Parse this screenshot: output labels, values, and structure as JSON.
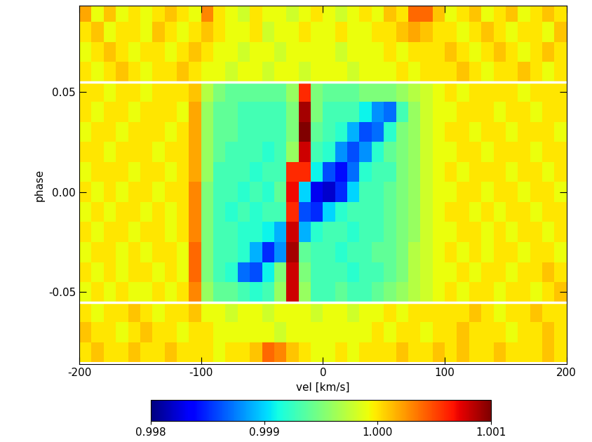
{
  "chart_data": {
    "type": "heatmap",
    "color": "jet",
    "xlabel": "vel [km/s]",
    "ylabel": "phase",
    "xlim": [
      -200,
      200
    ],
    "xticks": [
      -200,
      -100,
      0,
      100,
      200
    ],
    "ylim": [
      -0.086,
      0.093
    ],
    "yticks": [
      -0.05,
      {
        "value": 0.0,
        "label": "0.00"
      },
      0.05
    ],
    "hlines": [
      -0.055,
      0.055
    ],
    "x": [
      -195,
      -185,
      -175,
      -165,
      -155,
      -145,
      -135,
      -125,
      -115,
      -105,
      -95,
      -85,
      -75,
      -65,
      -55,
      -45,
      -35,
      -25,
      -15,
      -5,
      5,
      15,
      25,
      35,
      45,
      55,
      65,
      75,
      85,
      95,
      105,
      115,
      125,
      135,
      145,
      155,
      165,
      175,
      185,
      195
    ],
    "y": [
      -0.08,
      -0.07,
      -0.06,
      -0.05,
      -0.04,
      -0.03,
      -0.02,
      -0.01,
      0.0,
      0.01,
      0.02,
      0.03,
      0.04,
      0.05,
      0.06,
      0.07,
      0.08,
      0.09
    ],
    "cells": [
      [
        1.0,
        1.0001,
        1.0,
        1.0,
        1.0001,
        1.0,
        1.0,
        1.0001,
        1.0,
        1.0,
        1.0,
        0.9999,
        1.0,
        1.0,
        1.0001,
        1.0004,
        1.0003,
        1.0001,
        1.0,
        0.9999,
        0.9999,
        1.0,
        0.9999,
        1.0,
        1.0,
        1.0,
        1.0001,
        1.0,
        1.0,
        1.0001,
        1.0,
        1.0001,
        1.0,
        1.0,
        1.0001,
        1.0,
        1.0,
        1.0,
        1.0001,
        1.0
      ],
      [
        1.0001,
        1.0,
        1.0,
        0.9999,
        1.0,
        1.0001,
        1.0,
        1.0,
        0.9999,
        1.0,
        1.0,
        0.9999,
        0.9999,
        0.9999,
        0.9999,
        0.9999,
        0.9998,
        0.9999,
        0.9999,
        0.9999,
        0.9999,
        0.9999,
        0.9999,
        0.9999,
        1.0,
        0.9999,
        1.0,
        1.0,
        0.9999,
        1.0,
        1.0,
        1.0001,
        1.0,
        1.0,
        1.0,
        0.9999,
        1.0,
        1.0,
        1.0001,
        1.0
      ],
      [
        1.0,
        0.9999,
        1.0,
        1.0,
        1.0001,
        1.0,
        0.9999,
        1.0,
        1.0,
        1.0001,
        0.9999,
        0.9999,
        0.9998,
        0.9999,
        0.9999,
        0.9998,
        0.9999,
        0.9999,
        0.9999,
        0.9998,
        0.9999,
        0.9999,
        0.9998,
        0.9999,
        0.9999,
        1.0,
        0.9999,
        1.0,
        1.0,
        1.0,
        1.0,
        1.0,
        1.0001,
        1.0,
        0.9999,
        1.0,
        1.0,
        1.0001,
        1.0,
        1.0
      ],
      [
        0.9999,
        1.0,
        0.9999,
        1.0,
        0.9999,
        0.9999,
        1.0,
        0.9999,
        1.0,
        1.0003,
        0.9996,
        0.9994,
        0.9994,
        0.9993,
        0.9992,
        0.9993,
        0.9996,
        1.0008,
        0.9996,
        0.9993,
        0.9993,
        0.9994,
        0.9993,
        0.9993,
        0.9994,
        0.9995,
        0.9996,
        0.9997,
        0.9998,
        0.9999,
        1.0,
        0.9999,
        1.0,
        1.0,
        0.9999,
        1.0,
        1.0,
        0.9999,
        1.0,
        1.0001
      ],
      [
        1.0,
        0.9999,
        1.0,
        0.9999,
        1.0,
        1.0,
        0.9999,
        1.0,
        0.9999,
        1.0004,
        0.9995,
        0.9993,
        0.9992,
        0.9987,
        0.9986,
        0.9991,
        0.9995,
        1.0008,
        0.9995,
        0.9993,
        0.9993,
        0.9993,
        0.9992,
        0.9993,
        0.9993,
        0.9994,
        0.9995,
        0.9997,
        0.9998,
        0.9999,
        0.9999,
        1.0,
        0.9999,
        1.0,
        1.0,
        0.9999,
        1.0,
        1.0,
        1.0001,
        1.0
      ],
      [
        0.9999,
        1.0,
        1.0,
        0.9999,
        1.0,
        0.9999,
        1.0,
        1.0,
        0.9999,
        1.0004,
        0.9995,
        0.9993,
        0.9993,
        0.9992,
        0.9989,
        0.9985,
        0.9988,
        1.0009,
        0.9994,
        0.9993,
        0.9993,
        0.9992,
        0.9993,
        0.9993,
        0.9994,
        0.9994,
        0.9995,
        0.9997,
        0.9998,
        0.9999,
        1.0,
        0.9999,
        1.0,
        0.9999,
        1.0,
        1.0,
        0.9999,
        1.0,
        1.0,
        0.9999
      ],
      [
        1.0,
        0.9999,
        1.0,
        1.0,
        0.9999,
        1.0,
        1.0,
        0.9999,
        1.0,
        1.0003,
        0.9995,
        0.9993,
        0.9993,
        0.9992,
        0.9992,
        0.9991,
        0.9989,
        1.0008,
        0.9989,
        0.9992,
        0.9993,
        0.9993,
        0.9992,
        0.9993,
        0.9993,
        0.9994,
        0.9995,
        0.9996,
        0.9998,
        0.9999,
        0.9999,
        1.0,
        1.0,
        0.9999,
        1.0,
        0.9999,
        1.0,
        1.0,
        0.9999,
        1.0
      ],
      [
        0.9999,
        1.0,
        0.9999,
        1.0,
        1.0,
        0.9999,
        1.0,
        0.9999,
        1.0,
        1.0003,
        0.9995,
        0.9993,
        0.9992,
        0.9993,
        0.9992,
        0.9993,
        0.9993,
        1.0006,
        0.9986,
        0.9985,
        0.999,
        0.9992,
        0.9993,
        0.9993,
        0.9993,
        0.9994,
        0.9995,
        0.9996,
        0.9998,
        0.9999,
        1.0,
        1.0,
        0.9999,
        1.0,
        0.9999,
        1.0,
        1.0,
        0.9999,
        1.0,
        1.0
      ],
      [
        1.0,
        0.9999,
        1.0,
        0.9999,
        1.0,
        1.0,
        0.9999,
        1.0,
        1.0,
        1.0003,
        0.9995,
        0.9993,
        0.9993,
        0.9992,
        0.9993,
        0.9992,
        0.9994,
        1.0007,
        0.999,
        0.9983,
        0.9982,
        0.9985,
        0.999,
        0.9993,
        0.9993,
        0.9994,
        0.9995,
        0.9996,
        0.9998,
        0.9999,
        0.9999,
        1.0,
        1.0,
        0.9999,
        1.0,
        1.0,
        0.9999,
        1.0,
        1.0,
        0.9999
      ],
      [
        0.9999,
        1.0,
        1.0,
        1.0,
        0.9999,
        1.0,
        1.0,
        0.9999,
        1.0,
        1.0002,
        0.9996,
        0.9993,
        0.9993,
        0.9993,
        0.9992,
        0.9993,
        0.9993,
        1.0006,
        1.0006,
        0.9991,
        0.9986,
        0.9984,
        0.9987,
        0.9992,
        0.9993,
        0.9993,
        0.9995,
        0.9996,
        0.9998,
        0.9999,
        1.0,
        0.9999,
        1.0,
        1.0,
        1.0,
        0.9999,
        1.0,
        1.0,
        0.9999,
        1.0
      ],
      [
        1.0,
        1.0,
        0.9999,
        1.0,
        1.0,
        1.0,
        0.9999,
        1.0,
        1.0,
        1.0002,
        0.9996,
        0.9994,
        0.9993,
        0.9993,
        0.9993,
        0.9992,
        0.9993,
        0.9996,
        1.0008,
        0.9993,
        0.9992,
        0.9988,
        0.9986,
        0.9988,
        0.9992,
        0.9994,
        0.9995,
        0.9996,
        0.9998,
        0.9999,
        0.9999,
        1.0,
        1.0,
        0.9999,
        1.0,
        1.0,
        1.0,
        0.9999,
        1.0,
        1.0
      ],
      [
        0.9999,
        1.0,
        1.0,
        0.9999,
        1.0,
        1.0,
        1.0,
        0.9999,
        1.0,
        1.0002,
        0.9996,
        0.9994,
        0.9994,
        0.9993,
        0.9993,
        0.9993,
        0.9993,
        0.9995,
        1.001,
        0.9994,
        0.9993,
        0.9992,
        0.9989,
        0.9986,
        0.9987,
        0.9992,
        0.9995,
        0.9996,
        0.9998,
        0.9999,
        1.0,
        1.0,
        0.9999,
        1.0,
        1.0,
        0.9999,
        1.0,
        1.0,
        1.0,
        0.9999
      ],
      [
        1.0,
        0.9999,
        1.0,
        1.0,
        0.9999,
        1.0,
        1.0,
        1.0,
        0.9999,
        1.0002,
        0.9996,
        0.9994,
        0.9994,
        0.9993,
        0.9993,
        0.9993,
        0.9993,
        0.9995,
        1.0009,
        0.9995,
        0.9993,
        0.9993,
        0.9993,
        0.9991,
        0.9988,
        0.9987,
        0.9993,
        0.9996,
        0.9998,
        0.9999,
        0.9999,
        1.0,
        1.0,
        1.0,
        0.9999,
        1.0,
        1.0,
        0.9999,
        1.0,
        1.0
      ],
      [
        1.0,
        1.0,
        0.9999,
        1.0,
        1.0,
        0.9999,
        1.0,
        1.0,
        1.0,
        1.0001,
        0.9997,
        0.9995,
        0.9994,
        0.9994,
        0.9994,
        0.9994,
        0.9994,
        0.9996,
        1.0006,
        0.9995,
        0.9994,
        0.9994,
        0.9994,
        0.9995,
        0.9995,
        0.9995,
        0.9996,
        0.9997,
        0.9998,
        0.9999,
        1.0,
        0.9999,
        1.0,
        1.0,
        1.0,
        1.0,
        0.9999,
        1.0,
        1.0,
        1.0
      ],
      [
        1.0,
        0.9999,
        1.0,
        1.0001,
        1.0,
        0.9999,
        1.0,
        1.0,
        1.0001,
        1.0,
        0.9999,
        0.9999,
        0.9998,
        0.9999,
        0.9999,
        0.9998,
        0.9999,
        0.9999,
        0.9998,
        0.9999,
        0.9999,
        0.9999,
        0.9998,
        0.9999,
        0.9999,
        0.9999,
        1.0,
        0.9999,
        1.0,
        1.0,
        1.0,
        1.0001,
        1.0,
        0.9999,
        1.0,
        1.0,
        1.0001,
        1.0,
        0.9999,
        1.0
      ],
      [
        0.9999,
        1.0,
        1.0001,
        1.0,
        0.9999,
        1.0,
        1.0,
        0.9999,
        1.0,
        1.0001,
        1.0,
        0.9999,
        0.9999,
        0.9998,
        0.9999,
        0.9999,
        0.9998,
        0.9999,
        0.9999,
        0.9999,
        0.9999,
        0.9998,
        0.9999,
        0.9999,
        0.9999,
        1.0,
        0.9999,
        1.0,
        1.0,
        1.0,
        1.0001,
        1.0,
        0.9999,
        1.0,
        1.0001,
        1.0,
        0.9999,
        1.0,
        1.0001,
        1.0
      ],
      [
        1.0,
        1.0001,
        0.9999,
        1.0,
        1.0,
        0.9999,
        1.0001,
        1.0,
        0.9999,
        1.0,
        1.0001,
        1.0,
        0.9999,
        0.9999,
        1.0,
        0.9998,
        0.9999,
        0.9999,
        1.0,
        0.9999,
        0.9999,
        1.0,
        0.9999,
        0.9999,
        1.0,
        1.0,
        1.0001,
        1.0002,
        1.0001,
        1.0,
        1.0,
        0.9999,
        1.0,
        1.0001,
        1.0,
        0.9999,
        1.0,
        1.0,
        0.9999,
        1.0001
      ],
      [
        1.0002,
        0.9999,
        1.0001,
        0.9999,
        1.0,
        0.9999,
        1.0,
        1.0001,
        1.0,
        0.9999,
        1.0003,
        1.0,
        0.9999,
        0.9998,
        1.0,
        0.9999,
        0.9999,
        0.9998,
        0.9999,
        1.0,
        0.9999,
        0.9998,
        0.9999,
        1.0,
        0.9999,
        1.0001,
        1.0,
        1.0004,
        1.0004,
        1.0001,
        0.9999,
        1.0,
        1.0001,
        0.9999,
        1.0,
        1.0001,
        0.9999,
        1.0,
        1.0001,
        1.0
      ]
    ],
    "colorbar": {
      "lim": [
        0.998,
        1.001
      ],
      "ticks": [
        0.998,
        0.999,
        {
          "value": 1.0,
          "label": "1.000"
        },
        1.001
      ]
    }
  }
}
